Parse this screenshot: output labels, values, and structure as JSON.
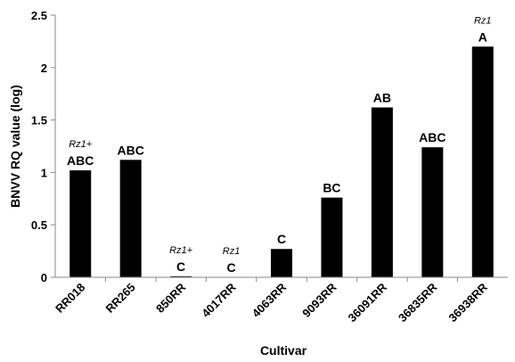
{
  "chart_data": {
    "type": "bar",
    "title": "",
    "xlabel": "Cultivar",
    "ylabel": "BNVV RQ value (log)",
    "ylim": [
      0,
      2.5
    ],
    "yticks": [
      "0",
      "0.5",
      "1",
      "1.5",
      "2",
      "2.5"
    ],
    "grid": false,
    "categories": [
      "RR018",
      "RR265",
      "850RR",
      "4017RR",
      "4063RR",
      "9093RR",
      "36091RR",
      "36835RR",
      "36938RR"
    ],
    "values": [
      1.02,
      1.12,
      0.01,
      0.0,
      0.27,
      0.76,
      1.62,
      1.24,
      2.2
    ],
    "group_labels": [
      "ABC",
      "ABC",
      "C",
      "C",
      "C",
      "BC",
      "AB",
      "ABC",
      "A"
    ],
    "gene_labels": [
      "Rz1+",
      "",
      "Rz1+",
      "Rz1",
      "",
      "",
      "",
      "",
      "Rz1"
    ],
    "bar_color": "#000000"
  }
}
